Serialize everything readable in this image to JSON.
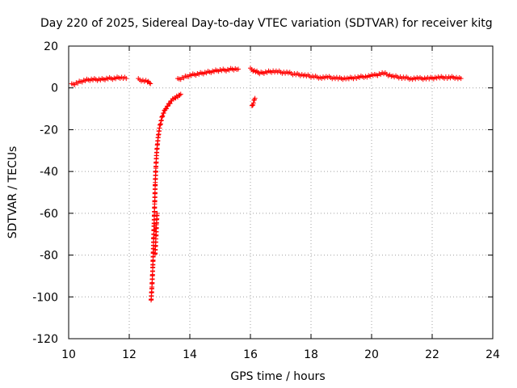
{
  "chart_data": {
    "type": "scatter",
    "title": "Day 220 of 2025, Sidereal Day-to-day VTEC variation (SDTVAR) for receiver kitg",
    "xlabel": "GPS time / hours",
    "ylabel": "SDTVAR / TECUs",
    "xlim": [
      10,
      24
    ],
    "ylim": [
      -120,
      20
    ],
    "xticks": [
      "10",
      "12",
      "14",
      "16",
      "18",
      "20",
      "22",
      "24"
    ],
    "yticks": [
      "-120",
      "-100",
      "-80",
      "-60",
      "-40",
      "-20",
      "0",
      "20"
    ],
    "grid": true,
    "marker": "plus",
    "marker_color": "#ff0000",
    "series": [
      {
        "name": "SDTVAR",
        "segments": [
          {
            "x": [
              10.1,
              10.3,
              10.5,
              10.7,
              10.9,
              11.1,
              11.3,
              11.5,
              11.7,
              11.9
            ],
            "y": [
              1.5,
              2.5,
              3.5,
              4,
              4,
              4,
              4.5,
              4.5,
              5,
              4.5
            ]
          },
          {
            "x": [
              12.3,
              12.6,
              12.7
            ],
            "y": [
              4,
              3,
              2
            ]
          },
          {
            "x": [
              12.72,
              12.75,
              12.78,
              12.8,
              12.82,
              12.84,
              12.86,
              12.88,
              12.9,
              12.93,
              12.96,
              13.0,
              13.05,
              13.1,
              13.2,
              13.3,
              13.4,
              13.5,
              13.6,
              13.7
            ],
            "y": [
              -102,
              -95,
              -85,
              -75,
              -65,
              -55,
              -45,
              -38,
              -32,
              -27,
              -23,
              -19,
              -16,
              -13,
              -10,
              -8,
              -6,
              -5,
              -4,
              -3
            ]
          },
          {
            "x": [
              12.85,
              12.88,
              12.9,
              12.92
            ],
            "y": [
              -80,
              -72,
              -65,
              -60
            ]
          },
          {
            "x": [
              13.6,
              13.8,
              14.0,
              14.2,
              14.4,
              14.6,
              14.8,
              15.0,
              15.2,
              15.4,
              15.6
            ],
            "y": [
              4,
              5,
              6,
              6.5,
              7,
              7.5,
              8,
              8.5,
              8.5,
              9,
              9
            ]
          },
          {
            "x": [
              16.05,
              16.1,
              16.15
            ],
            "y": [
              -9,
              -7,
              -5
            ]
          },
          {
            "x": [
              16.0,
              16.3,
              16.5,
              16.8,
              17.0,
              17.3,
              17.5,
              17.8,
              18.0,
              18.3,
              18.6,
              18.9,
              19.2,
              19.5,
              19.8,
              20.1,
              20.4,
              20.7,
              21.0,
              21.3,
              21.6,
              21.9,
              22.2,
              22.5,
              22.8,
              22.95
            ],
            "y": [
              9,
              7,
              7.5,
              8,
              7.5,
              7,
              6.5,
              6,
              5.5,
              5,
              5,
              4.5,
              4.5,
              5,
              5.5,
              6,
              7,
              5.5,
              5,
              4.5,
              4.5,
              4.5,
              5,
              5,
              5,
              4.5
            ]
          }
        ]
      }
    ]
  }
}
